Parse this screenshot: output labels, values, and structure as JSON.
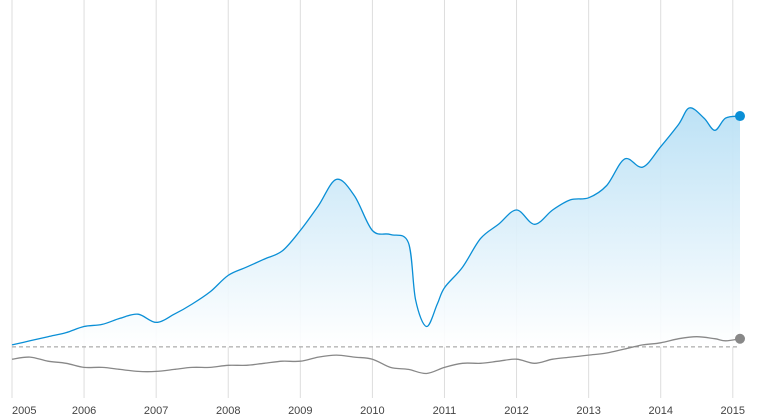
{
  "chart_data": {
    "type": "area",
    "title": "",
    "xlabel": "",
    "ylabel": "",
    "x_ticks": [
      "2005",
      "2006",
      "2007",
      "2008",
      "2009",
      "2010",
      "2011",
      "2012",
      "2013",
      "2014",
      "2015"
    ],
    "x_range": [
      2005.0,
      2015.1
    ],
    "y_range": [
      -0.25,
      1.6
    ],
    "baseline": 0,
    "baseline_style": "dashed",
    "grid": "vertical",
    "legend": "none",
    "series": [
      {
        "color": "#0a8fd6",
        "fill": "#c9e7f7",
        "end_marker": true,
        "points": [
          [
            2005.0,
            0.01
          ],
          [
            2005.25,
            0.03
          ],
          [
            2005.5,
            0.05
          ],
          [
            2005.75,
            0.07
          ],
          [
            2006.0,
            0.1
          ],
          [
            2006.25,
            0.11
          ],
          [
            2006.5,
            0.14
          ],
          [
            2006.75,
            0.16
          ],
          [
            2007.0,
            0.12
          ],
          [
            2007.25,
            0.16
          ],
          [
            2007.5,
            0.21
          ],
          [
            2007.75,
            0.27
          ],
          [
            2008.0,
            0.35
          ],
          [
            2008.25,
            0.39
          ],
          [
            2008.5,
            0.43
          ],
          [
            2008.75,
            0.47
          ],
          [
            2009.0,
            0.57
          ],
          [
            2009.25,
            0.69
          ],
          [
            2009.5,
            0.82
          ],
          [
            2009.75,
            0.74
          ],
          [
            2010.0,
            0.57
          ],
          [
            2010.25,
            0.55
          ],
          [
            2010.5,
            0.51
          ],
          [
            2010.6,
            0.23
          ],
          [
            2010.75,
            0.1
          ],
          [
            2010.9,
            0.21
          ],
          [
            2011.0,
            0.29
          ],
          [
            2011.25,
            0.39
          ],
          [
            2011.5,
            0.53
          ],
          [
            2011.75,
            0.6
          ],
          [
            2012.0,
            0.67
          ],
          [
            2012.25,
            0.6
          ],
          [
            2012.5,
            0.67
          ],
          [
            2012.75,
            0.72
          ],
          [
            2013.0,
            0.73
          ],
          [
            2013.25,
            0.79
          ],
          [
            2013.5,
            0.92
          ],
          [
            2013.75,
            0.88
          ],
          [
            2014.0,
            0.98
          ],
          [
            2014.25,
            1.09
          ],
          [
            2014.4,
            1.17
          ],
          [
            2014.6,
            1.12
          ],
          [
            2014.75,
            1.06
          ],
          [
            2014.9,
            1.12
          ],
          [
            2015.1,
            1.13
          ]
        ]
      },
      {
        "color": "#888888",
        "fill": "none",
        "end_marker": true,
        "points": [
          [
            2005.0,
            -0.06
          ],
          [
            2005.25,
            -0.05
          ],
          [
            2005.5,
            -0.07
          ],
          [
            2005.75,
            -0.08
          ],
          [
            2006.0,
            -0.1
          ],
          [
            2006.25,
            -0.1
          ],
          [
            2006.5,
            -0.11
          ],
          [
            2006.75,
            -0.12
          ],
          [
            2007.0,
            -0.12
          ],
          [
            2007.25,
            -0.11
          ],
          [
            2007.5,
            -0.1
          ],
          [
            2007.75,
            -0.1
          ],
          [
            2008.0,
            -0.09
          ],
          [
            2008.25,
            -0.09
          ],
          [
            2008.5,
            -0.08
          ],
          [
            2008.75,
            -0.07
          ],
          [
            2009.0,
            -0.07
          ],
          [
            2009.25,
            -0.05
          ],
          [
            2009.5,
            -0.04
          ],
          [
            2009.75,
            -0.05
          ],
          [
            2010.0,
            -0.06
          ],
          [
            2010.25,
            -0.1
          ],
          [
            2010.5,
            -0.11
          ],
          [
            2010.75,
            -0.13
          ],
          [
            2011.0,
            -0.1
          ],
          [
            2011.25,
            -0.08
          ],
          [
            2011.5,
            -0.08
          ],
          [
            2011.75,
            -0.07
          ],
          [
            2012.0,
            -0.06
          ],
          [
            2012.25,
            -0.08
          ],
          [
            2012.5,
            -0.06
          ],
          [
            2012.75,
            -0.05
          ],
          [
            2013.0,
            -0.04
          ],
          [
            2013.25,
            -0.03
          ],
          [
            2013.5,
            -0.01
          ],
          [
            2013.75,
            0.01
          ],
          [
            2014.0,
            0.02
          ],
          [
            2014.25,
            0.04
          ],
          [
            2014.5,
            0.05
          ],
          [
            2014.75,
            0.04
          ],
          [
            2014.9,
            0.03
          ],
          [
            2015.1,
            0.04
          ]
        ]
      }
    ]
  }
}
